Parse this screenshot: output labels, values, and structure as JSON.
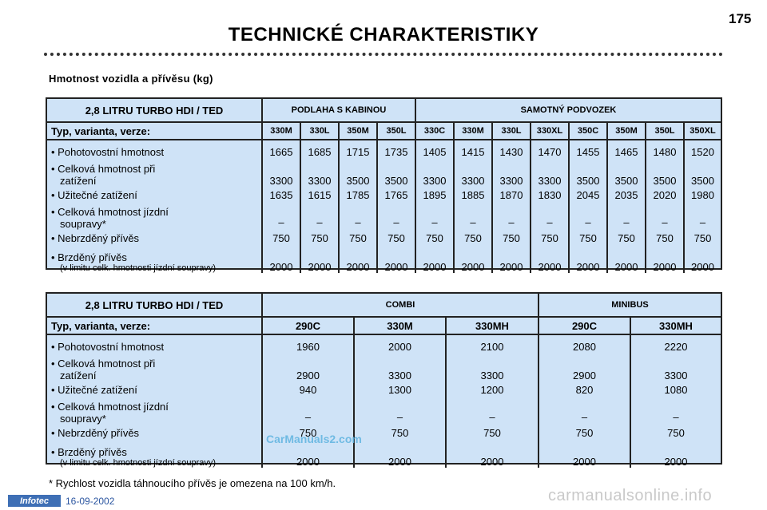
{
  "page": {
    "number": "175",
    "title": "TECHNICKÉ CHARAKTERISTIKY",
    "section_title": "Hmotnost vozidla a přívěsu (kg)",
    "footnote": "* Rychlost vozidla táhnoucího přívěs je omezena na 100 km/h."
  },
  "row_labels": {
    "r1": "• Pohotovostní hmotnost",
    "r2a": "• Celková hmotnost při",
    "r2b": "zatížení",
    "r3": "• Užitečné zatížení",
    "r4a": "• Celková hmotnost jízdní",
    "r4b": "soupravy*",
    "r5": "• Nebrzděný přívěs",
    "r6a": "• Brzděný přívěs",
    "r6b": "(v limitu celk. hmotnosti jízdní soupravy)",
    "variant_header": "Typ, varianta, verze:"
  },
  "table1": {
    "engine": "2,8 LITRU TURBO HDI / TED",
    "group1": "PODLAHA S KABINOU",
    "group2": "SAMOTNÝ PODVOZEK",
    "variants": [
      "330M",
      "330L",
      "350M",
      "350L",
      "330C",
      "330M",
      "330L",
      "330XL",
      "350C",
      "350M",
      "350L",
      "350XL"
    ],
    "columns": [
      [
        "1665",
        "3300",
        "1635",
        "–",
        "750",
        "2000"
      ],
      [
        "1685",
        "3300",
        "1615",
        "–",
        "750",
        "2000"
      ],
      [
        "1715",
        "3500",
        "1785",
        "–",
        "750",
        "2000"
      ],
      [
        "1735",
        "3500",
        "1765",
        "–",
        "750",
        "2000"
      ],
      [
        "1405",
        "3300",
        "1895",
        "–",
        "750",
        "2000"
      ],
      [
        "1415",
        "3300",
        "1885",
        "–",
        "750",
        "2000"
      ],
      [
        "1430",
        "3300",
        "1870",
        "–",
        "750",
        "2000"
      ],
      [
        "1470",
        "3300",
        "1830",
        "–",
        "750",
        "2000"
      ],
      [
        "1455",
        "3500",
        "2045",
        "–",
        "750",
        "2000"
      ],
      [
        "1465",
        "3500",
        "2035",
        "–",
        "750",
        "2000"
      ],
      [
        "1480",
        "3500",
        "2020",
        "–",
        "750",
        "2000"
      ],
      [
        "1520",
        "3500",
        "1980",
        "–",
        "750",
        "2000"
      ]
    ]
  },
  "table2": {
    "engine": "2,8 LITRU TURBO HDI / TED",
    "group1": "COMBI",
    "group2": "MINIBUS",
    "variants": [
      "290C",
      "330M",
      "330MH",
      "290C",
      "330MH"
    ],
    "columns": [
      [
        "1960",
        "2900",
        "940",
        "–",
        "750",
        "2000"
      ],
      [
        "2000",
        "3300",
        "1300",
        "–",
        "750",
        "2000"
      ],
      [
        "2100",
        "3300",
        "1200",
        "–",
        "750",
        "2000"
      ],
      [
        "2080",
        "2900",
        "820",
        "–",
        "750",
        "2000"
      ],
      [
        "2220",
        "3300",
        "1080",
        "–",
        "750",
        "2000"
      ]
    ]
  },
  "footer": {
    "logo": "Infotec",
    "date": "16-09-2002",
    "site": "carmanualsonline.info",
    "watermark": "CarManuals2.com"
  }
}
